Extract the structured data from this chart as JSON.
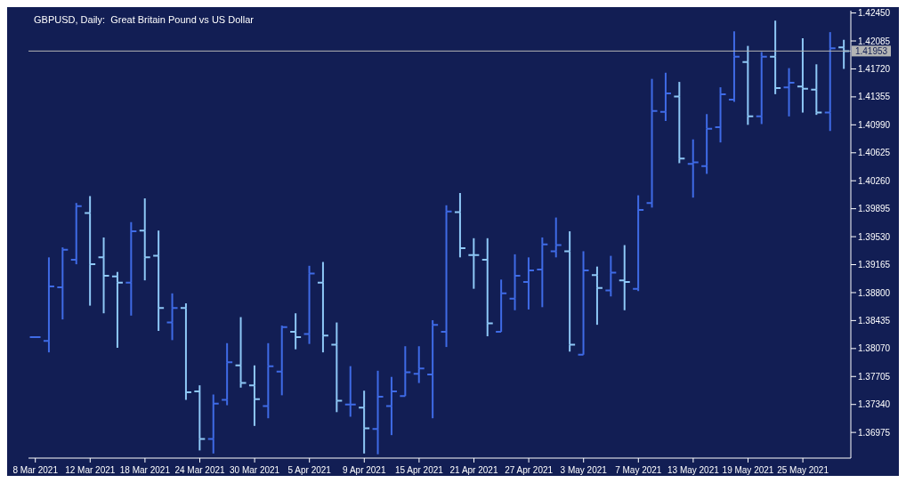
{
  "chart_data": {
    "type": "candlestick",
    "title": "GBPUSD, Daily:  Great Britain Pound vs US Dollar",
    "categories": [
      "8 Mar 2021",
      null,
      null,
      null,
      "12 Mar 2021",
      null,
      null,
      null,
      "18 Mar 2021",
      null,
      null,
      null,
      "24 Mar 2021",
      null,
      null,
      null,
      "30 Mar 2021",
      null,
      null,
      null,
      "5 Apr 2021",
      null,
      null,
      null,
      "9 Apr 2021",
      null,
      null,
      null,
      "15 Apr 2021",
      null,
      null,
      null,
      "21 Apr 2021",
      null,
      null,
      null,
      "27 Apr 2021",
      null,
      null,
      null,
      "3 May 2021",
      null,
      null,
      null,
      "7 May 2021",
      null,
      null,
      null,
      "13 May 2021",
      null,
      null,
      null,
      "19 May 2021",
      null,
      null,
      null,
      "25 May 2021",
      null,
      null,
      null
    ],
    "ohlc": [
      [
        1.3822,
        1.3822,
        1.3822,
        1.3822
      ],
      [
        1.3817,
        1.3926,
        1.3802,
        1.3888
      ],
      [
        1.3887,
        1.3939,
        1.3845,
        1.3936
      ],
      [
        1.3923,
        1.3997,
        1.3917,
        1.3993
      ],
      [
        1.3984,
        1.4006,
        1.3863,
        1.3917
      ],
      [
        1.3926,
        1.3952,
        1.3853,
        1.3902
      ],
      [
        1.3901,
        1.3907,
        1.3808,
        1.3893
      ],
      [
        1.3893,
        1.3972,
        1.385,
        1.396
      ],
      [
        1.3961,
        1.4003,
        1.3896,
        1.3926
      ],
      [
        1.3928,
        1.3961,
        1.383,
        1.386
      ],
      [
        1.3841,
        1.3879,
        1.3818,
        1.386
      ],
      [
        1.386,
        1.3866,
        1.374,
        1.375
      ],
      [
        1.3751,
        1.3759,
        1.3674,
        1.3689
      ],
      [
        1.3689,
        1.3747,
        1.367,
        1.3735
      ],
      [
        1.374,
        1.3814,
        1.3733,
        1.3789
      ],
      [
        1.3785,
        1.3848,
        1.3756,
        1.3762
      ],
      [
        1.3759,
        1.3785,
        1.3706,
        1.3741
      ],
      [
        1.3732,
        1.3814,
        1.3716,
        1.3784
      ],
      [
        1.3777,
        1.3837,
        1.3746,
        1.3835
      ],
      [
        1.3829,
        1.3853,
        1.3806,
        1.3822
      ],
      [
        1.3826,
        1.3915,
        1.3813,
        1.3905
      ],
      [
        1.3893,
        1.392,
        1.3802,
        1.3824
      ],
      [
        1.3812,
        1.3841,
        1.3724,
        1.3739
      ],
      [
        1.3734,
        1.3784,
        1.3718,
        1.3734
      ],
      [
        1.373,
        1.3752,
        1.367,
        1.3703
      ],
      [
        1.3702,
        1.3778,
        1.3669,
        1.3744
      ],
      [
        1.3732,
        1.377,
        1.3694,
        1.3751
      ],
      [
        1.3745,
        1.381,
        1.3745,
        1.3776
      ],
      [
        1.3774,
        1.381,
        1.3762,
        1.3781
      ],
      [
        1.3773,
        1.3844,
        1.3716,
        1.3838
      ],
      [
        1.3829,
        1.3994,
        1.3809,
        1.3986
      ],
      [
        1.3985,
        1.401,
        1.3926,
        1.3938
      ],
      [
        1.3929,
        1.3951,
        1.3885,
        1.3929
      ],
      [
        1.3923,
        1.3951,
        1.3823,
        1.384
      ],
      [
        1.3829,
        1.3897,
        1.3828,
        1.3879
      ],
      [
        1.3872,
        1.393,
        1.3857,
        1.3902
      ],
      [
        1.3894,
        1.3926,
        1.3858,
        1.3909
      ],
      [
        1.391,
        1.3952,
        1.3861,
        1.3943
      ],
      [
        1.3934,
        1.3978,
        1.3926,
        1.3942
      ],
      [
        1.3934,
        1.396,
        1.3803,
        1.3812
      ],
      [
        1.3799,
        1.3934,
        1.3798,
        1.3909
      ],
      [
        1.3903,
        1.3914,
        1.3838,
        1.3886
      ],
      [
        1.3883,
        1.3928,
        1.3875,
        1.3906
      ],
      [
        1.3896,
        1.3942,
        1.3857,
        1.3894
      ],
      [
        1.3885,
        1.4007,
        1.3882,
        1.3988
      ],
      [
        1.3997,
        1.4159,
        1.3991,
        1.4117
      ],
      [
        1.4116,
        1.4167,
        1.4104,
        1.414
      ],
      [
        1.4136,
        1.4155,
        1.4049,
        1.4055
      ],
      [
        1.4048,
        1.408,
        1.4004,
        1.405
      ],
      [
        1.4045,
        1.4113,
        1.4035,
        1.4094
      ],
      [
        1.4096,
        1.4148,
        1.4076,
        1.4139
      ],
      [
        1.4132,
        1.4221,
        1.4129,
        1.4188
      ],
      [
        1.4181,
        1.4202,
        1.4099,
        1.411
      ],
      [
        1.411,
        1.4194,
        1.41,
        1.4188
      ],
      [
        1.4188,
        1.4235,
        1.4139,
        1.4147
      ],
      [
        1.4148,
        1.4173,
        1.411,
        1.4154
      ],
      [
        1.4149,
        1.4212,
        1.4115,
        1.4146
      ],
      [
        1.4145,
        1.4178,
        1.4112,
        1.4115
      ],
      [
        1.4115,
        1.422,
        1.4091,
        1.4199
      ],
      [
        1.42,
        1.421,
        1.4172,
        1.41953
      ]
    ],
    "colors": [
      "#3f6be6",
      "#3f6be6",
      "#3f6be6",
      "#3f6be6",
      "#8ec8f6",
      "#8ec8f6",
      "#8ec8f6",
      "#3f6be6",
      "#8ec8f6",
      "#8ec8f6",
      "#3f6be6",
      "#8ec8f6",
      "#8ec8f6",
      "#3f6be6",
      "#3f6be6",
      "#8ec8f6",
      "#8ec8f6",
      "#3f6be6",
      "#3f6be6",
      "#8ec8f6",
      "#3f6be6",
      "#8ec8f6",
      "#8ec8f6",
      "#3f6be6",
      "#8ec8f6",
      "#3f6be6",
      "#3f6be6",
      "#3f6be6",
      "#3f6be6",
      "#3f6be6",
      "#3f6be6",
      "#8ec8f6",
      "#8ec8f6",
      "#8ec8f6",
      "#3f6be6",
      "#3f6be6",
      "#3f6be6",
      "#3f6be6",
      "#3f6be6",
      "#8ec8f6",
      "#3f6be6",
      "#8ec8f6",
      "#3f6be6",
      "#8ec8f6",
      "#3f6be6",
      "#3f6be6",
      "#3f6be6",
      "#8ec8f6",
      "#3f6be6",
      "#3f6be6",
      "#3f6be6",
      "#3f6be6",
      "#8ec8f6",
      "#3f6be6",
      "#8ec8f6",
      "#3f6be6",
      "#8ec8f6",
      "#8ec8f6",
      "#3f6be6",
      "#8ec8f6"
    ],
    "ylim": [
      1.3664,
      1.4248
    ],
    "yticks": [
      {
        "value": 1.36975,
        "label": "1.36975"
      },
      {
        "value": 1.3734,
        "label": "1.37340"
      },
      {
        "value": 1.37705,
        "label": "1.37705"
      },
      {
        "value": 1.3807,
        "label": "1.38070"
      },
      {
        "value": 1.38435,
        "label": "1.38435"
      },
      {
        "value": 1.388,
        "label": "1.38800"
      },
      {
        "value": 1.39165,
        "label": "1.39165"
      },
      {
        "value": 1.3953,
        "label": "1.39530"
      },
      {
        "value": 1.39895,
        "label": "1.39895"
      },
      {
        "value": 1.4026,
        "label": "1.40260"
      },
      {
        "value": 1.40625,
        "label": "1.40625"
      },
      {
        "value": 1.4099,
        "label": "1.40990"
      },
      {
        "value": 1.41355,
        "label": "1.41355"
      },
      {
        "value": 1.4172,
        "label": "1.41720"
      },
      {
        "value": 1.42085,
        "label": "1.42085"
      },
      {
        "value": 1.4245,
        "label": "1.42450"
      }
    ],
    "ref_lines": [
      {
        "axis": "y",
        "value": 1.41953,
        "label": "1.41953",
        "color": "#b4b4b4"
      }
    ]
  }
}
